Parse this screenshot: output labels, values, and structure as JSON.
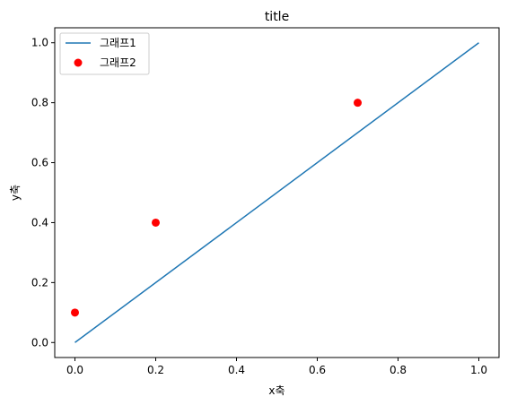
{
  "chart_data": {
    "type": "line",
    "title": "title",
    "xlabel": "x축",
    "ylabel": "y축",
    "xlim": [
      -0.05,
      1.05
    ],
    "ylim": [
      -0.05,
      1.05
    ],
    "xticks": [
      0.0,
      0.2,
      0.4,
      0.6,
      0.8,
      1.0
    ],
    "yticks": [
      0.0,
      0.2,
      0.4,
      0.6,
      0.8,
      1.0
    ],
    "xtick_labels": [
      "0.0",
      "0.2",
      "0.4",
      "0.6",
      "0.8",
      "1.0"
    ],
    "ytick_labels": [
      "0.0",
      "0.2",
      "0.4",
      "0.6",
      "0.8",
      "1.0"
    ],
    "grid": false,
    "legend_position": "top-left",
    "series": [
      {
        "name": "그래프1",
        "kind": "line",
        "color": "#1f77b4",
        "x": [
          0.0,
          1.0
        ],
        "y": [
          0.0,
          1.0
        ]
      },
      {
        "name": "그래프2",
        "kind": "scatter",
        "color": "#ff0000",
        "x": [
          0.0,
          0.2,
          0.7
        ],
        "y": [
          0.1,
          0.4,
          0.8
        ]
      }
    ]
  }
}
